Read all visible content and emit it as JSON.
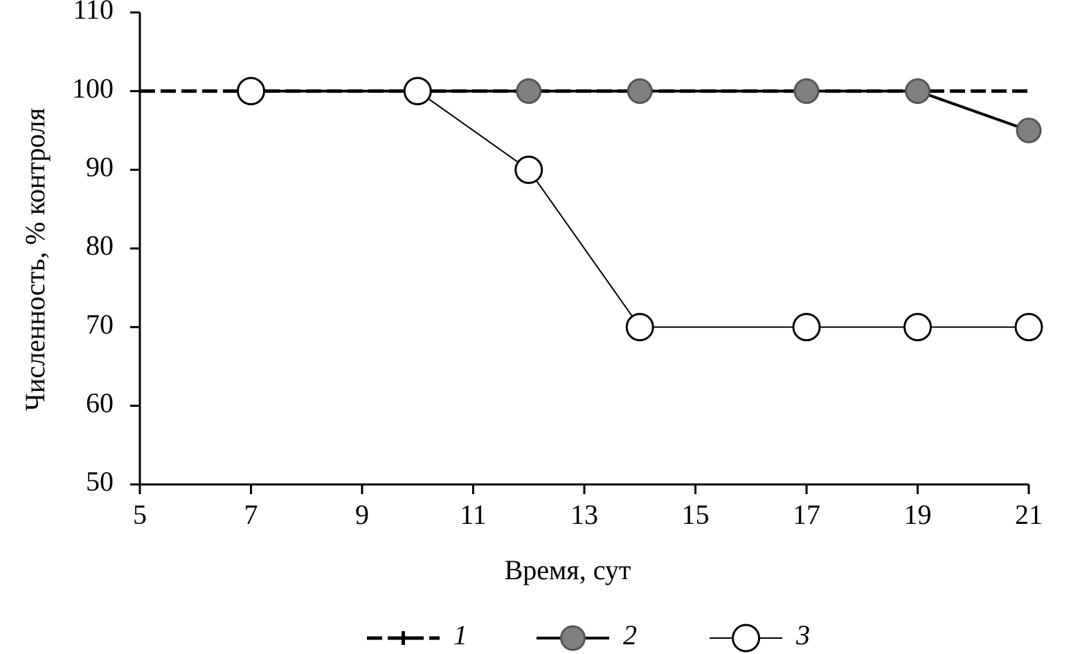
{
  "chart_data": {
    "type": "line",
    "x_label": "Время, сут",
    "y_label": "Численность, % контроля",
    "xlim": [
      5,
      21
    ],
    "xticks": [
      5,
      7,
      9,
      11,
      13,
      15,
      17,
      19,
      21
    ],
    "ylim": [
      50,
      110
    ],
    "yticks": [
      50,
      60,
      70,
      80,
      90,
      100,
      110
    ],
    "legend": "bottom",
    "series": [
      {
        "name": "1",
        "color": "#000000",
        "style": "dashed",
        "marker": "plus",
        "x": [
          5,
          21
        ],
        "values": [
          100,
          100
        ]
      },
      {
        "name": "2",
        "color": "#808080",
        "style": "thick",
        "marker": "filled-circle",
        "x": [
          7,
          10,
          12,
          14,
          17,
          19,
          21
        ],
        "values": [
          100,
          100,
          100,
          100,
          100,
          100,
          95
        ]
      },
      {
        "name": "3",
        "color": "#ffffff",
        "style": "thin",
        "marker": "open-circle",
        "x": [
          7,
          10,
          12,
          14,
          17,
          19,
          21
        ],
        "values": [
          100,
          100,
          90,
          70,
          70,
          70,
          70
        ]
      }
    ]
  }
}
